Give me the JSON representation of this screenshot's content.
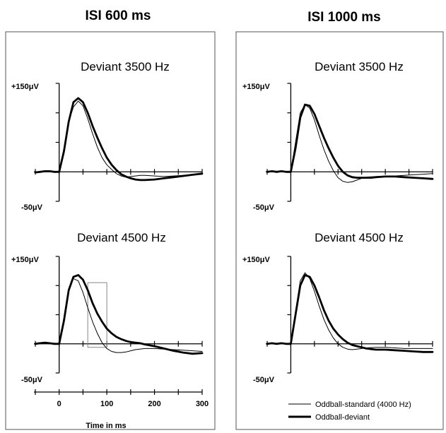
{
  "columns": [
    {
      "title": "ISI 600 ms"
    },
    {
      "title": "ISI 1000 ms"
    }
  ],
  "chart_data": [
    {
      "type": "line",
      "column": "ISI 600 ms",
      "title": "Deviant 3500 Hz",
      "ymax_label": "+150μV",
      "ymin_label": "-50μV",
      "xlim": [
        -50,
        300
      ],
      "ylim": [
        -50,
        150
      ],
      "series": [
        {
          "legend": "Oddball-standard (4000 Hz)",
          "style": "thin",
          "x": [
            -50,
            -30,
            -20,
            -10,
            0,
            10,
            20,
            30,
            40,
            50,
            60,
            70,
            80,
            90,
            100,
            110,
            120,
            130,
            140,
            150,
            160,
            170,
            180,
            200,
            220,
            240,
            260,
            280,
            300
          ],
          "y": [
            0,
            0,
            1,
            0,
            0,
            40,
            85,
            110,
            120,
            112,
            90,
            65,
            42,
            24,
            12,
            4,
            -3,
            -7,
            -9,
            -8,
            -7,
            -6,
            -6,
            -7,
            -8,
            -7,
            -6,
            -5,
            -4
          ]
        },
        {
          "legend": "Oddball-deviant",
          "style": "thick",
          "x": [
            -50,
            -40,
            -30,
            -20,
            -10,
            0,
            10,
            20,
            30,
            40,
            50,
            60,
            70,
            80,
            90,
            100,
            110,
            120,
            130,
            140,
            150,
            160,
            170,
            180,
            200,
            220,
            240,
            260,
            280,
            300
          ],
          "y": [
            -1,
            0,
            1,
            1,
            0,
            0,
            35,
            85,
            118,
            125,
            118,
            100,
            78,
            58,
            40,
            24,
            12,
            3,
            -4,
            -8,
            -11,
            -13,
            -14,
            -14,
            -13,
            -11,
            -9,
            -7,
            -5,
            -3
          ]
        }
      ]
    },
    {
      "type": "line",
      "column": "ISI 1000 ms",
      "title": "Deviant 3500 Hz",
      "ymax_label": "+150μV",
      "ymin_label": "-50μV",
      "xlim": [
        -50,
        300
      ],
      "ylim": [
        -50,
        150
      ],
      "series": [
        {
          "legend": "Oddball-standard (4000 Hz)",
          "style": "thin",
          "x": [
            -50,
            -40,
            -30,
            -20,
            -10,
            0,
            10,
            20,
            30,
            40,
            50,
            60,
            70,
            80,
            90,
            100,
            110,
            120,
            130,
            140,
            150,
            160,
            180,
            200,
            220,
            240,
            260,
            280,
            300
          ],
          "y": [
            0,
            1,
            0,
            1,
            0,
            0,
            50,
            100,
            114,
            108,
            88,
            62,
            38,
            18,
            2,
            -10,
            -16,
            -18,
            -17,
            -14,
            -11,
            -9,
            -8,
            -8,
            -7,
            -6,
            -5,
            -4,
            -3
          ]
        },
        {
          "legend": "Oddball-deviant",
          "style": "thick",
          "x": [
            -50,
            -40,
            -30,
            -20,
            -10,
            0,
            10,
            20,
            30,
            40,
            50,
            60,
            70,
            80,
            90,
            100,
            110,
            120,
            130,
            140,
            150,
            160,
            170,
            180,
            200,
            220,
            240,
            260,
            280,
            300
          ],
          "y": [
            0,
            1,
            0,
            1,
            0,
            0,
            40,
            92,
            114,
            112,
            98,
            78,
            58,
            40,
            24,
            10,
            0,
            -6,
            -9,
            -10,
            -10,
            -10,
            -10,
            -9,
            -8,
            -8,
            -9,
            -10,
            -11,
            -12
          ]
        }
      ]
    },
    {
      "type": "line",
      "column": "ISI 600 ms",
      "title": "Deviant 4500 Hz",
      "ymax_label": "+150μV",
      "ymin_label": "-50μV",
      "xlim": [
        -50,
        300
      ],
      "ylim": [
        -50,
        150
      ],
      "xticks": [
        0,
        100,
        200,
        300
      ],
      "xlabel": "Time in ms",
      "highlight_box": {
        "x": [
          60,
          100
        ],
        "y": [
          -6,
          105
        ]
      },
      "series": [
        {
          "legend": "Oddball-standard (4000 Hz)",
          "style": "thin",
          "x": [
            -50,
            -40,
            -30,
            -20,
            -10,
            0,
            10,
            20,
            30,
            40,
            50,
            60,
            70,
            80,
            90,
            100,
            110,
            120,
            130,
            140,
            150,
            160,
            180,
            200,
            220,
            240,
            260,
            280,
            300
          ],
          "y": [
            1,
            2,
            1,
            0,
            1,
            0,
            45,
            92,
            112,
            108,
            88,
            62,
            38,
            18,
            2,
            -8,
            -13,
            -15,
            -15,
            -14,
            -12,
            -10,
            -8,
            -8,
            -9,
            -10,
            -11,
            -12,
            -13
          ]
        },
        {
          "legend": "Oddball-deviant",
          "style": "thick",
          "x": [
            -50,
            -40,
            -30,
            -20,
            -10,
            0,
            10,
            20,
            30,
            40,
            50,
            60,
            70,
            80,
            90,
            100,
            110,
            120,
            130,
            140,
            150,
            160,
            170,
            180,
            200,
            220,
            240,
            260,
            280,
            300
          ],
          "y": [
            0,
            1,
            2,
            1,
            0,
            0,
            40,
            92,
            115,
            118,
            110,
            92,
            70,
            52,
            38,
            26,
            18,
            12,
            8,
            5,
            3,
            2,
            1,
            -1,
            -4,
            -8,
            -12,
            -15,
            -17,
            -16
          ]
        }
      ]
    },
    {
      "type": "line",
      "column": "ISI 1000 ms",
      "title": "Deviant 4500 Hz",
      "ymax_label": "+150μV",
      "ymin_label": "-50μV",
      "xlim": [
        -50,
        300
      ],
      "ylim": [
        -50,
        150
      ],
      "series": [
        {
          "legend": "Oddball-standard (4000 Hz)",
          "style": "thin",
          "x": [
            -50,
            -40,
            -30,
            -20,
            -10,
            0,
            10,
            20,
            30,
            40,
            50,
            60,
            70,
            80,
            90,
            100,
            110,
            120,
            130,
            140,
            150,
            160,
            180,
            200,
            220,
            240,
            260,
            280,
            300
          ],
          "y": [
            0,
            1,
            0,
            1,
            0,
            0,
            55,
            108,
            122,
            112,
            90,
            65,
            42,
            24,
            10,
            0,
            -6,
            -9,
            -10,
            -9,
            -8,
            -7,
            -6,
            -6,
            -7,
            -8,
            -8,
            -8,
            -8
          ]
        },
        {
          "legend": "Oddball-deviant",
          "style": "thick",
          "x": [
            -50,
            -40,
            -30,
            -20,
            -10,
            0,
            10,
            20,
            30,
            40,
            50,
            60,
            70,
            80,
            90,
            100,
            110,
            120,
            130,
            140,
            150,
            160,
            170,
            180,
            200,
            220,
            240,
            260,
            280,
            300
          ],
          "y": [
            0,
            1,
            0,
            1,
            0,
            0,
            50,
            100,
            118,
            115,
            100,
            80,
            58,
            40,
            26,
            16,
            8,
            2,
            -2,
            -4,
            -6,
            -8,
            -9,
            -10,
            -10,
            -11,
            -12,
            -13,
            -14,
            -14
          ]
        }
      ]
    }
  ],
  "legend": {
    "placement": "bottom-right",
    "entries": [
      {
        "label": "Oddball-standard (4000 Hz)",
        "style": "thin"
      },
      {
        "label": "Oddball-deviant",
        "style": "thick"
      }
    ]
  }
}
